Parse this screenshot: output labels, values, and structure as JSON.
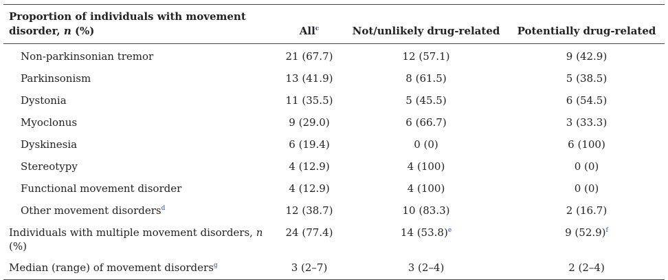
{
  "header": {
    "col1_line1": "Proportion of individuals with movement",
    "col1_line2_pre": "disorder, ",
    "col1_line2_n": "n",
    "col1_line2_post": " (%)",
    "col2": "All",
    "col2_sup": "c",
    "col3": "Not/unlikely drug-related",
    "col4": "Potentially drug-related"
  },
  "rows": [
    {
      "label": "Non-parkinsonian tremor",
      "label_sup": "",
      "all": "21 (67.7)",
      "all_sup": "",
      "not": "12 (57.1)",
      "not_sup": "",
      "pot": "9 (42.9)",
      "pot_sup": ""
    },
    {
      "label": "Parkinsonism",
      "label_sup": "",
      "all": "13 (41.9)",
      "all_sup": "",
      "not": "8 (61.5)",
      "not_sup": "",
      "pot": "5 (38.5)",
      "pot_sup": ""
    },
    {
      "label": "Dystonia",
      "label_sup": "",
      "all": "11 (35.5)",
      "all_sup": "",
      "not": "5 (45.5)",
      "not_sup": "",
      "pot": "6 (54.5)",
      "pot_sup": ""
    },
    {
      "label": "Myoclonus",
      "label_sup": "",
      "all": "9 (29.0)",
      "all_sup": "",
      "not": "6 (66.7)",
      "not_sup": "",
      "pot": "3 (33.3)",
      "pot_sup": ""
    },
    {
      "label": "Dyskinesia",
      "label_sup": "",
      "all": "6 (19.4)",
      "all_sup": "",
      "not": "0 (0)",
      "not_sup": "",
      "pot": "6 (100)",
      "pot_sup": ""
    },
    {
      "label": "Stereotypy",
      "label_sup": "",
      "all": "4 (12.9)",
      "all_sup": "",
      "not": "4 (100)",
      "not_sup": "",
      "pot": "0 (0)",
      "pot_sup": ""
    },
    {
      "label": "Functional movement disorder",
      "label_sup": "",
      "all": "4 (12.9)",
      "all_sup": "",
      "not": "4 (100)",
      "not_sup": "",
      "pot": "0 (0)",
      "pot_sup": ""
    },
    {
      "label": "Other movement disorders",
      "label_sup": "d",
      "all": "12 (38.7)",
      "all_sup": "",
      "not": "10 (83.3)",
      "not_sup": "",
      "pot": "2 (16.7)",
      "pot_sup": ""
    }
  ],
  "multiple": {
    "label_line1_pre": "Individuals with multiple movement disorders, ",
    "label_line1_n": "n",
    "label_line2": "(%)",
    "all": "24 (77.4)",
    "not": "14 (53.8)",
    "not_sup": "e",
    "pot": "9 (52.9)",
    "pot_sup": "f"
  },
  "median": {
    "label": "Median (range) of movement disorders",
    "label_sup": "g",
    "all": "3 (2–7)",
    "not": "3 (2–4)",
    "pot": "2 (2–4)"
  }
}
